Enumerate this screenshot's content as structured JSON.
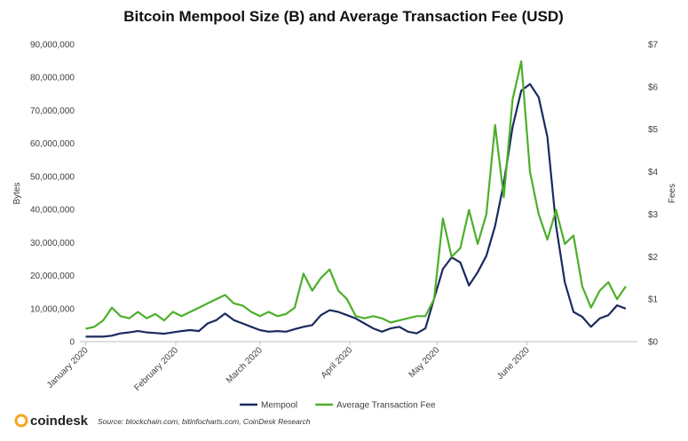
{
  "chart_data": {
    "type": "line",
    "title": "Bitcoin Mempool Size (B) and Average Transaction Fee (USD)",
    "y_label": "Bytes",
    "y2_label": "Fees",
    "source": "Source: blockchain.com, bitinfocharts.com, CoinDesk Research",
    "brand": "coindesk",
    "x": [
      0,
      3,
      6,
      9,
      12,
      15,
      18,
      21,
      24,
      27,
      30,
      33,
      36,
      39,
      42,
      45,
      48,
      51,
      54,
      57,
      60,
      63,
      66,
      69,
      72,
      75,
      78,
      81,
      84,
      87,
      90,
      93,
      96,
      99,
      102,
      105,
      108,
      111,
      114,
      117,
      120,
      123,
      126,
      129,
      132,
      135,
      138,
      141,
      144,
      147,
      150,
      153,
      156,
      159,
      162,
      165,
      168,
      171,
      174,
      177,
      180,
      183,
      186
    ],
    "xlim": [
      -2,
      190
    ],
    "xticks": [
      {
        "value": 0,
        "label": "January 2020"
      },
      {
        "value": 31,
        "label": "February 2020"
      },
      {
        "value": 60,
        "label": "March 2020"
      },
      {
        "value": 91,
        "label": "April 2020"
      },
      {
        "value": 121,
        "label": "May 2020"
      },
      {
        "value": 152,
        "label": "June 2020"
      }
    ],
    "ylim": [
      0,
      90000000
    ],
    "yticks": [
      {
        "value": 0,
        "label": "0"
      },
      {
        "value": 10000000,
        "label": "10,000,000"
      },
      {
        "value": 20000000,
        "label": "20,000,000"
      },
      {
        "value": 30000000,
        "label": "30,000,000"
      },
      {
        "value": 40000000,
        "label": "40,000,000"
      },
      {
        "value": 50000000,
        "label": "50,000,000"
      },
      {
        "value": 60000000,
        "label": "60,000,000"
      },
      {
        "value": 70000000,
        "label": "70,000,000"
      },
      {
        "value": 80000000,
        "label": "80,000,000"
      },
      {
        "value": 90000000,
        "label": "90,000,000"
      }
    ],
    "y2lim": [
      0,
      7
    ],
    "y2ticks": [
      {
        "value": 0,
        "label": "$0"
      },
      {
        "value": 1,
        "label": "$1"
      },
      {
        "value": 2,
        "label": "$2"
      },
      {
        "value": 3,
        "label": "$3"
      },
      {
        "value": 4,
        "label": "$4"
      },
      {
        "value": 5,
        "label": "$5"
      },
      {
        "value": 6,
        "label": "$6"
      },
      {
        "value": 7,
        "label": "$7"
      }
    ],
    "series": [
      {
        "name": "Mempool",
        "color": "#1b2a5e",
        "values": [
          1500000,
          1500000,
          1500000,
          1800000,
          2500000,
          2800000,
          3200000,
          2800000,
          2600000,
          2400000,
          2800000,
          3200000,
          3500000,
          3200000,
          5500000,
          6500000,
          8500000,
          6500000,
          5500000,
          4500000,
          3500000,
          3000000,
          3200000,
          3000000,
          3800000,
          4500000,
          5000000,
          8000000,
          9500000,
          9000000,
          8000000,
          7000000,
          5500000,
          4000000,
          3000000,
          4000000,
          4500000,
          3000000,
          2500000,
          4000000,
          13000000,
          22000000,
          25500000,
          24000000,
          17000000,
          21000000,
          26000000,
          35000000,
          48000000,
          65000000,
          76000000,
          78000000,
          74000000,
          62000000,
          35000000,
          18000000,
          9000000,
          7500000,
          4500000,
          7000000,
          8000000,
          11000000,
          10000000
        ]
      },
      {
        "name": "Average Transaction Fee",
        "color": "#4caf2a",
        "axis": "y2",
        "values": [
          0.3,
          0.35,
          0.5,
          0.8,
          0.6,
          0.55,
          0.7,
          0.55,
          0.65,
          0.5,
          0.7,
          0.6,
          0.7,
          0.8,
          0.9,
          1.0,
          1.1,
          0.9,
          0.85,
          0.7,
          0.6,
          0.7,
          0.6,
          0.65,
          0.8,
          1.6,
          1.2,
          1.5,
          1.7,
          1.2,
          1.0,
          0.6,
          0.55,
          0.6,
          0.55,
          0.45,
          0.5,
          0.55,
          0.6,
          0.6,
          1.0,
          2.9,
          2.0,
          2.2,
          3.1,
          2.3,
          3.0,
          5.1,
          3.4,
          5.7,
          6.6,
          4.0,
          3.0,
          2.4,
          3.1,
          2.3,
          2.5,
          1.3,
          0.8,
          1.2,
          1.4,
          1.0,
          1.3
        ]
      }
    ]
  }
}
